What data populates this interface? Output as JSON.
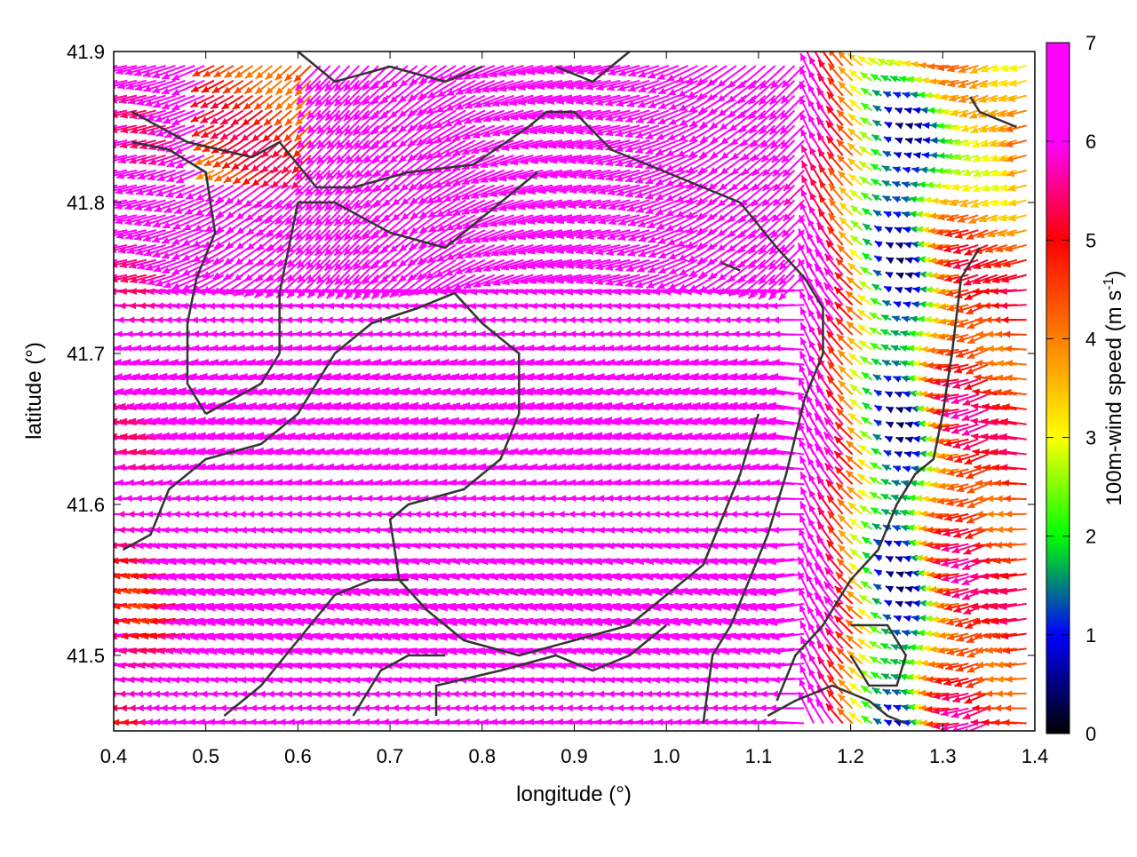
{
  "chart_data": {
    "type": "vector-field",
    "xlabel": "longitude (°)",
    "ylabel": "latitude (°)",
    "xlim": [
      0.4,
      1.4
    ],
    "ylim": [
      41.45,
      41.9
    ],
    "x_ticks": [
      "0.4",
      "0.5",
      "0.6",
      "0.7",
      "0.8",
      "0.9",
      "1.0",
      "1.1",
      "1.2",
      "1.3",
      "1.4"
    ],
    "y_ticks": [
      "41.5",
      "41.6",
      "41.7",
      "41.8",
      "41.9"
    ],
    "colorbar": {
      "label_main": "100m-wind speed (m s",
      "label_sup": "-1",
      "label_end": ")",
      "range": [
        0,
        7
      ],
      "ticks": [
        "0",
        "1",
        "2",
        "3",
        "4",
        "5",
        "6",
        "7"
      ],
      "palette": [
        "#000000",
        "#0000ff",
        "#00ff00",
        "#ffff00",
        "#ff8000",
        "#ff0000",
        "#ff00ff"
      ]
    },
    "grid": false,
    "field_description": "Wind vectors colored by speed; easterly flow (westward pointing) strongest (>7 m/s) over west and center, weak (<2 m/s) calm zone near lon 1.2–1.3.",
    "calm_zone": {
      "lon_range": [
        1.17,
        1.33
      ],
      "lat_range": [
        41.45,
        41.78
      ],
      "min_speed": 0.3
    },
    "contours": [
      [
        [
          0.42,
          41.86
        ],
        [
          0.48,
          41.84
        ],
        [
          0.55,
          41.83
        ],
        [
          0.58,
          41.84
        ],
        [
          0.62,
          41.81
        ],
        [
          0.66,
          41.81
        ],
        [
          0.72,
          41.82
        ],
        [
          0.79,
          41.825
        ],
        [
          0.85,
          41.85
        ],
        [
          0.87,
          41.86
        ],
        [
          0.9,
          41.86
        ],
        [
          0.94,
          41.835
        ],
        [
          1.0,
          41.82
        ],
        [
          1.08,
          41.8
        ],
        [
          1.12,
          41.77
        ],
        [
          1.15,
          41.75
        ],
        [
          1.17,
          41.73
        ],
        [
          1.17,
          41.7
        ],
        [
          1.15,
          41.67
        ],
        [
          1.13,
          41.62
        ],
        [
          1.11,
          41.58
        ],
        [
          1.09,
          41.55
        ],
        [
          1.07,
          41.52
        ],
        [
          1.05,
          41.5
        ],
        [
          1.04,
          41.455
        ]
      ],
      [
        [
          0.42,
          41.84
        ],
        [
          0.46,
          41.835
        ],
        [
          0.5,
          41.82
        ],
        [
          0.51,
          41.78
        ],
        [
          0.49,
          41.75
        ],
        [
          0.48,
          41.72
        ],
        [
          0.48,
          41.68
        ],
        [
          0.5,
          41.66
        ]
      ],
      [
        [
          0.5,
          41.66
        ],
        [
          0.56,
          41.68
        ],
        [
          0.58,
          41.7
        ],
        [
          0.58,
          41.74
        ],
        [
          0.6,
          41.8
        ],
        [
          0.64,
          41.8
        ],
        [
          0.7,
          41.78
        ],
        [
          0.76,
          41.77
        ],
        [
          0.82,
          41.8
        ],
        [
          0.86,
          41.82
        ]
      ],
      [
        [
          0.41,
          41.57
        ],
        [
          0.44,
          41.58
        ],
        [
          0.46,
          41.61
        ],
        [
          0.5,
          41.63
        ],
        [
          0.56,
          41.64
        ],
        [
          0.6,
          41.66
        ],
        [
          0.64,
          41.7
        ],
        [
          0.68,
          41.72
        ],
        [
          0.73,
          41.73
        ],
        [
          0.77,
          41.74
        ],
        [
          0.8,
          41.72
        ],
        [
          0.84,
          41.7
        ],
        [
          0.84,
          41.66
        ],
        [
          0.82,
          41.63
        ],
        [
          0.78,
          41.61
        ],
        [
          0.72,
          41.6
        ],
        [
          0.7,
          41.59
        ],
        [
          0.71,
          41.55
        ],
        [
          0.74,
          41.53
        ],
        [
          0.78,
          41.51
        ],
        [
          0.84,
          41.5
        ],
        [
          0.9,
          41.51
        ],
        [
          0.96,
          41.52
        ],
        [
          1.0,
          41.54
        ],
        [
          1.04,
          41.56
        ],
        [
          1.06,
          41.59
        ],
        [
          1.08,
          41.62
        ],
        [
          1.1,
          41.66
        ]
      ],
      [
        [
          0.52,
          41.46
        ],
        [
          0.56,
          41.48
        ],
        [
          0.6,
          41.51
        ],
        [
          0.64,
          41.54
        ],
        [
          0.68,
          41.55
        ],
        [
          0.72,
          41.55
        ]
      ],
      [
        [
          0.66,
          41.46
        ],
        [
          0.69,
          41.49
        ],
        [
          0.72,
          41.5
        ],
        [
          0.76,
          41.5
        ]
      ],
      [
        [
          0.75,
          41.46
        ],
        [
          0.75,
          41.48
        ],
        [
          0.82,
          41.49
        ],
        [
          0.88,
          41.5
        ],
        [
          0.92,
          41.49
        ],
        [
          0.96,
          41.5
        ],
        [
          1.0,
          41.52
        ]
      ],
      [
        [
          1.11,
          41.46
        ],
        [
          1.14,
          41.47
        ],
        [
          1.18,
          41.48
        ],
        [
          1.22,
          41.47
        ],
        [
          1.24,
          41.46
        ],
        [
          1.26,
          41.455
        ]
      ],
      [
        [
          1.2,
          41.52
        ],
        [
          1.24,
          41.52
        ],
        [
          1.26,
          41.5
        ],
        [
          1.25,
          41.48
        ],
        [
          1.22,
          41.48
        ],
        [
          1.2,
          41.5
        ]
      ],
      [
        [
          1.34,
          41.77
        ],
        [
          1.32,
          41.75
        ],
        [
          1.31,
          41.7
        ],
        [
          1.3,
          41.66
        ],
        [
          1.29,
          41.63
        ],
        [
          1.27,
          41.62
        ],
        [
          1.25,
          41.6
        ],
        [
          1.23,
          41.57
        ],
        [
          1.2,
          41.55
        ],
        [
          1.17,
          41.52
        ],
        [
          1.14,
          41.5
        ],
        [
          1.12,
          41.47
        ]
      ],
      [
        [
          1.33,
          41.87
        ],
        [
          1.34,
          41.86
        ],
        [
          1.38,
          41.85
        ]
      ],
      [
        [
          1.06,
          41.76
        ],
        [
          1.08,
          41.755
        ]
      ],
      [
        [
          0.6,
          41.9
        ],
        [
          0.64,
          41.88
        ],
        [
          0.7,
          41.89
        ],
        [
          0.76,
          41.88
        ],
        [
          0.8,
          41.89
        ]
      ],
      [
        [
          0.88,
          41.89
        ],
        [
          0.92,
          41.88
        ],
        [
          0.96,
          41.9
        ]
      ]
    ]
  }
}
